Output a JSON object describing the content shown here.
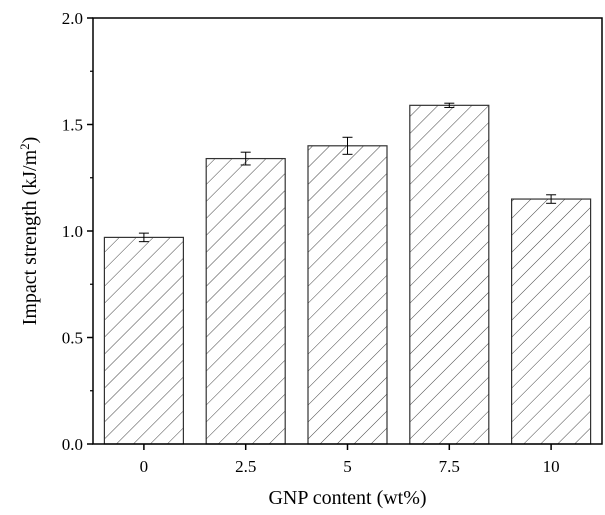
{
  "chart_data": {
    "type": "bar",
    "title": "",
    "xlabel": "GNP content (wt%)",
    "ylabel_main": "Impact strength (kJ/m",
    "ylabel_sup": "2",
    "ylabel_close": ")",
    "categories": [
      "0",
      "2.5",
      "5",
      "7.5",
      "10"
    ],
    "values": [
      0.97,
      1.34,
      1.4,
      1.59,
      1.15
    ],
    "errors": [
      0.02,
      0.03,
      0.04,
      0.01,
      0.02
    ],
    "ylim": [
      0,
      2.0
    ],
    "yticks": [
      "0.0",
      "0.5",
      "1.0",
      "1.5",
      "2.0"
    ],
    "bar_fill": "hatched",
    "colors": {
      "bar_stroke": "#333333",
      "hatch": "#444444",
      "axis": "#000000"
    },
    "grid": false
  }
}
